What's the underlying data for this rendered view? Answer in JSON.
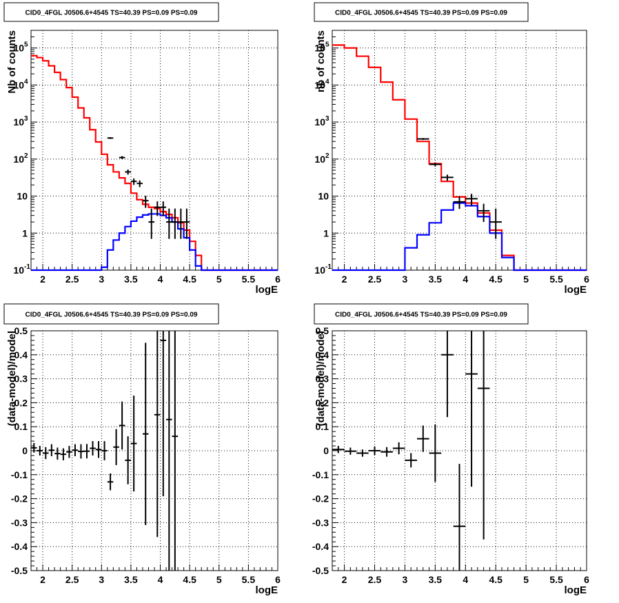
{
  "chart_data": [
    {
      "type": "histogram",
      "title": "CID0_4FGL J0506.6+4545 TS=40.39 PS=0.09 PS=0.09",
      "xlabel": "logE",
      "ylabel": "Nb of counts",
      "xlim": [
        1.8,
        6.0
      ],
      "ylim": [
        0.1,
        300000
      ],
      "yscale": "log",
      "grid": true,
      "x_ticks": [
        "2",
        "2.5",
        "3",
        "3.5",
        "4",
        "4.5",
        "5",
        "5.5",
        "6"
      ],
      "y_ticks": [
        "10^-1",
        "1",
        "10",
        "10^2",
        "10^3",
        "10^4",
        "10^5"
      ],
      "series": [
        {
          "color": "#ff0000",
          "bin_edges": [
            1.8,
            1.9,
            2.0,
            2.1,
            2.2,
            2.3,
            2.4,
            2.5,
            2.6,
            2.7,
            2.8,
            2.9,
            3.0,
            3.1,
            3.2,
            3.3,
            3.4,
            3.5,
            3.6,
            3.7,
            3.8,
            3.9,
            4.0,
            4.1,
            4.2,
            4.3,
            4.4,
            4.5,
            4.6,
            4.7,
            4.8,
            4.9,
            5.0,
            5.1,
            5.2,
            5.3,
            5.4,
            5.5,
            5.6,
            5.7,
            5.8,
            5.9,
            6.0
          ],
          "values": [
            62000,
            55000,
            45000,
            33000,
            22000,
            14000,
            8500,
            4700,
            2400,
            1300,
            620,
            290,
            135,
            70,
            45,
            31,
            22,
            12,
            8,
            6,
            5,
            4.6,
            3.8,
            3.2,
            2.6,
            1.9,
            1.2,
            0.6,
            0.25,
            0.1,
            0.1,
            0.1,
            0.1,
            0.1,
            0.1,
            0.1,
            0.1,
            0.1,
            0.1,
            0.1,
            0.1,
            0.1
          ]
        },
        {
          "color": "#0000ff",
          "bin_edges": [
            1.8,
            3.0,
            3.1,
            3.2,
            3.3,
            3.4,
            3.5,
            3.6,
            3.7,
            3.8,
            3.9,
            4.0,
            4.1,
            4.2,
            4.3,
            4.4,
            4.5,
            4.6,
            4.7,
            6.0
          ],
          "values": [
            0.1,
            0.12,
            0.35,
            0.65,
            1.0,
            1.5,
            2.1,
            2.7,
            3.1,
            3.3,
            3.3,
            3.0,
            2.6,
            2.0,
            1.3,
            0.75,
            0.35,
            0.13,
            0.1
          ]
        }
      ],
      "points": {
        "color": "#000000",
        "x": [
          3.15,
          3.35,
          3.45,
          3.55,
          3.65,
          3.75,
          3.85,
          3.95,
          4.05,
          4.15,
          4.25,
          4.35,
          4.45
        ],
        "y": [
          370,
          110,
          45,
          25,
          22,
          7.5,
          2,
          5,
          5,
          2,
          2,
          2,
          2
        ],
        "yerr": [
          [
            20,
            10,
            7,
            5,
            4.5,
            2.7,
            1.3,
            2.1,
            2.1,
            1.3,
            1.3,
            1.3,
            1.3
          ],
          [
            20,
            10,
            7,
            5,
            4.5,
            2.7,
            2.6,
            2.2,
            2.2,
            2.6,
            2.6,
            2.6,
            2.6
          ]
        ],
        "xerr": 0.05
      }
    },
    {
      "type": "histogram",
      "title": "CID0_4FGL J0506.6+4545 TS=40.39 PS=0.09 PS=0.09",
      "xlabel": "logE",
      "ylabel": "nb of counts",
      "xlim": [
        1.8,
        6.0
      ],
      "ylim": [
        0.1,
        300000
      ],
      "yscale": "log",
      "grid": true,
      "x_ticks": [
        "2",
        "2.5",
        "3",
        "3.5",
        "4",
        "4.5",
        "5",
        "5.5",
        "6"
      ],
      "y_ticks": [
        "10^-1",
        "1",
        "10",
        "10^2",
        "10^3",
        "10^4",
        "10^5"
      ],
      "series": [
        {
          "color": "#ff0000",
          "bin_edges": [
            1.8,
            2.0,
            2.2,
            2.4,
            2.6,
            2.8,
            3.0,
            3.2,
            3.4,
            3.6,
            3.8,
            4.0,
            4.2,
            4.4,
            4.6,
            4.8,
            6.0
          ],
          "values": [
            120000,
            100000,
            60000,
            30000,
            12000,
            4000,
            1200,
            300,
            75,
            25,
            9.5,
            6.5,
            3.5,
            1.2,
            0.25,
            0.1
          ]
        },
        {
          "color": "#0000ff",
          "bin_edges": [
            1.8,
            3.0,
            3.2,
            3.4,
            3.6,
            3.8,
            4.0,
            4.2,
            4.4,
            4.6,
            4.8,
            6.0
          ],
          "values": [
            0.1,
            0.4,
            0.9,
            1.9,
            4.2,
            6.5,
            5.5,
            2.8,
            1.0,
            0.22,
            0.1
          ]
        }
      ],
      "points": {
        "color": "#000000",
        "x": [
          3.3,
          3.5,
          3.7,
          3.9,
          4.1,
          4.3,
          4.5
        ],
        "y": [
          350,
          72,
          32,
          7,
          8.5,
          4,
          2
        ],
        "yerr": [
          [
            20,
            9,
            6,
            2.5,
            3,
            2,
            1.3
          ],
          [
            20,
            9,
            6,
            2.8,
            3,
            2.2,
            2.6
          ]
        ],
        "xerr": 0.1
      }
    },
    {
      "type": "scatter",
      "title": "CID0_4FGL J0506.6+4545 TS=40.39 PS=0.09 PS=0.09",
      "xlabel": "logE",
      "ylabel": "(data-model)/model",
      "xlim": [
        1.8,
        6.0
      ],
      "ylim": [
        -0.5,
        0.5
      ],
      "grid": true,
      "x_ticks": [
        "2",
        "2.5",
        "3",
        "3.5",
        "4",
        "4.5",
        "5",
        "5.5",
        "6"
      ],
      "y_ticks": [
        "-0.5",
        "-0.4",
        "-0.3",
        "-0.2",
        "-0.1",
        "0",
        "0.1",
        "0.2",
        "0.3",
        "0.4",
        "0.5"
      ],
      "points": {
        "color": "#000000",
        "x": [
          1.85,
          1.95,
          2.05,
          2.15,
          2.25,
          2.35,
          2.45,
          2.55,
          2.65,
          2.75,
          2.85,
          2.95,
          3.05,
          3.15,
          3.25,
          3.35,
          3.45,
          3.55,
          3.75,
          3.95,
          4.05,
          4.15,
          4.25
        ],
        "y": [
          0.012,
          0.0,
          -0.01,
          0.002,
          -0.012,
          -0.015,
          -0.005,
          0.002,
          -0.003,
          -0.002,
          0.01,
          0.005,
          0.0,
          -0.13,
          0.015,
          0.105,
          -0.04,
          0.03,
          0.07,
          0.15,
          0.46,
          0.13,
          0.06
        ],
        "yerr": [
          0.02,
          0.02,
          0.025,
          0.025,
          0.025,
          0.025,
          0.025,
          0.025,
          0.03,
          0.03,
          0.03,
          0.035,
          0.04,
          0.035,
          0.075,
          0.1,
          0.1,
          0.2,
          0.38,
          0.51,
          0.65,
          0.7,
          0.7
        ],
        "xerr": 0.05
      }
    },
    {
      "type": "scatter",
      "title": "CID0_4FGL J0506.6+4545 TS=40.39 PS=0.09 PS=0.09",
      "xlabel": "logE",
      "ylabel": "(data-model)/model",
      "xlim": [
        1.8,
        6.0
      ],
      "ylim": [
        -0.5,
        0.5
      ],
      "grid": true,
      "x_ticks": [
        "2",
        "2.5",
        "3",
        "3.5",
        "4",
        "4.5",
        "5",
        "5.5",
        "6"
      ],
      "y_ticks": [
        "-0.5",
        "-0.4",
        "-0.3",
        "-0.2",
        "-0.1",
        "0",
        "0.1",
        "0.2",
        "0.3",
        "0.4",
        "0.5"
      ],
      "points": {
        "color": "#000000",
        "x": [
          1.9,
          2.1,
          2.3,
          2.5,
          2.7,
          2.9,
          3.1,
          3.3,
          3.5,
          3.7,
          3.9,
          4.1,
          4.3
        ],
        "y": [
          0.005,
          -0.002,
          -0.01,
          0.0,
          -0.005,
          0.01,
          -0.04,
          0.05,
          -0.01,
          0.4,
          -0.315,
          0.32,
          0.26
        ],
        "yerr": [
          0.015,
          0.015,
          0.015,
          0.018,
          0.02,
          0.025,
          0.03,
          0.055,
          0.12,
          0.26,
          0.26,
          0.47,
          0.63
        ],
        "xerr": 0.1
      }
    }
  ]
}
